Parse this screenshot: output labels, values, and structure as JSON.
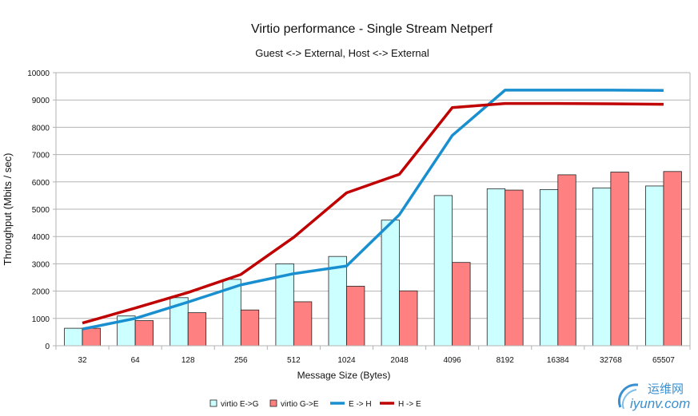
{
  "chart_data": {
    "type": "bar",
    "title": "Virtio performance - Single Stream Netperf",
    "subtitle": "Guest <-> External, Host <-> External",
    "xlabel": "Message Size (Bytes)",
    "ylabel": "Throughput (Mbits / sec)",
    "ylim": [
      0,
      10000
    ],
    "yticks": [
      0,
      1000,
      2000,
      3000,
      4000,
      5000,
      6000,
      7000,
      8000,
      9000,
      10000
    ],
    "grid": true,
    "legend_position": "bottom",
    "categories": [
      "32",
      "64",
      "128",
      "256",
      "512",
      "1024",
      "2048",
      "4096",
      "8192",
      "16384",
      "32768",
      "65507"
    ],
    "series": [
      {
        "name": "virtio E->G",
        "kind": "bar",
        "color": "#ccffff",
        "values": [
          640,
          1090,
          1760,
          2430,
          3000,
          3270,
          4600,
          5500,
          5750,
          5720,
          5780,
          5850
        ]
      },
      {
        "name": "virtio G->E",
        "kind": "bar",
        "color": "#ff8080",
        "values": [
          640,
          920,
          1210,
          1310,
          1610,
          2180,
          2010,
          3050,
          5700,
          6260,
          6360,
          6380
        ]
      },
      {
        "name": "E -> H",
        "kind": "line",
        "color": "#1a8fd0",
        "values": [
          610,
          1000,
          1600,
          2230,
          2640,
          2920,
          4800,
          7700,
          9360,
          9360,
          9360,
          9350
        ]
      },
      {
        "name": "H -> E",
        "kind": "line",
        "color": "#c00000",
        "values": [
          830,
          1380,
          1950,
          2610,
          3970,
          5600,
          6280,
          8720,
          8870,
          8870,
          8860,
          8840
        ]
      }
    ]
  },
  "watermark": {
    "cn": "运维网",
    "en": "iyunv.com"
  }
}
